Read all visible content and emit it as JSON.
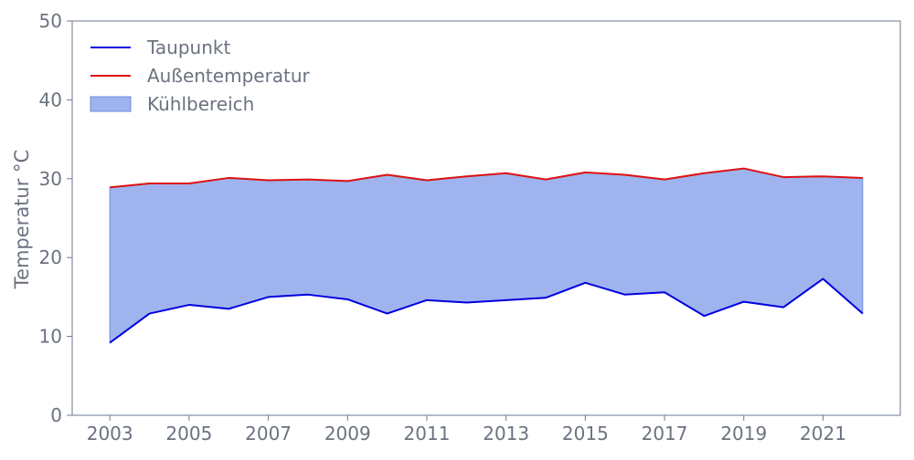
{
  "chart_data": {
    "type": "area",
    "ylabel": "Temperatur °C",
    "xlabel": "",
    "title": "",
    "x": [
      2003,
      2004,
      2005,
      2006,
      2007,
      2008,
      2009,
      2010,
      2011,
      2012,
      2013,
      2014,
      2015,
      2016,
      2017,
      2018,
      2019,
      2020,
      2021,
      2022
    ],
    "x_ticks": [
      "2003",
      "2005",
      "2007",
      "2009",
      "2011",
      "2013",
      "2015",
      "2017",
      "2019",
      "2021"
    ],
    "y_ticks": [
      "0",
      "10",
      "20",
      "30",
      "40",
      "50"
    ],
    "ylim": [
      0,
      50
    ],
    "xlim": [
      2002.05,
      2022.95
    ],
    "grid": false,
    "legend_position": "top-left",
    "series": [
      {
        "name": "Taupunkt",
        "kind": "line",
        "color": "#0000dd",
        "values": [
          9.2,
          12.9,
          14.0,
          13.5,
          15.0,
          15.3,
          14.7,
          12.9,
          14.6,
          14.3,
          14.6,
          14.9,
          16.8,
          15.3,
          15.6,
          12.6,
          14.4,
          13.7,
          17.3,
          12.9
        ]
      },
      {
        "name": "Außentemperatur",
        "kind": "line",
        "color": "#dd1111",
        "values": [
          28.9,
          29.4,
          29.4,
          30.1,
          29.8,
          29.9,
          29.7,
          30.5,
          29.8,
          30.3,
          30.7,
          29.9,
          30.8,
          30.5,
          29.9,
          30.7,
          31.3,
          30.2,
          30.3,
          30.1
        ]
      }
    ],
    "fill": {
      "name": "Kühlbereich",
      "between": [
        "Taupunkt",
        "Außentemperatur"
      ],
      "color": "#7f9be8",
      "opacity": 0.75,
      "edge_color": "#6f8be0"
    },
    "axis_color": "#6b7a8f",
    "text_color": "#6b7280"
  }
}
